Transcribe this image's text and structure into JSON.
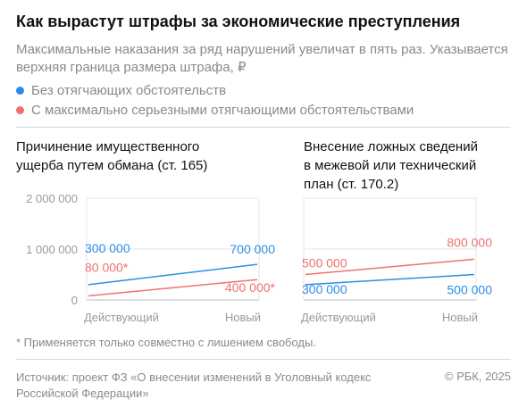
{
  "header": {
    "title": "Как вырастут штрафы за экономические преступления",
    "subtitle": "Максимальные наказания за ряд нарушений увеличат в пять раз. Указывается верхняя граница размера штрафа, ₽"
  },
  "legend": [
    {
      "label": "Без отягчающих обстоятельств",
      "color": "#2a8ee8"
    },
    {
      "label": "С максимально серьезными отягчающими обстоятельствами",
      "color": "#f07070"
    }
  ],
  "colors": {
    "blue": "#2a8ee8",
    "red": "#f07070",
    "grid": "#e6e6e6",
    "axis": "#bdbdbd"
  },
  "chart_data": [
    {
      "type": "line",
      "title": "Причинение имущественного ущерба путем обмана (ст. 165)",
      "categories": [
        "Действующий",
        "Новый"
      ],
      "ylim": [
        0,
        2000000
      ],
      "yticks": [
        0,
        1000000,
        2000000
      ],
      "ytick_labels": [
        "0",
        "1 000 000",
        "2 000 000"
      ],
      "grid": true,
      "series": [
        {
          "name": "Без отягчающих обстоятельств",
          "values": [
            300000,
            700000
          ],
          "labels": [
            "300 000",
            "700 000"
          ],
          "color": "#2a8ee8"
        },
        {
          "name": "С максимально серьезными отягчающими обстоятельствами",
          "values": [
            80000,
            400000
          ],
          "labels": [
            "80 000*",
            "400 000*"
          ],
          "color": "#f07070"
        }
      ]
    },
    {
      "type": "line",
      "title": "Внесение ложных сведений в межевой или технический план (ст. 170.2)",
      "categories": [
        "Действующий",
        "Новый"
      ],
      "ylim": [
        0,
        2000000
      ],
      "grid": true,
      "series": [
        {
          "name": "Без отягчающих обстоятельств",
          "values": [
            300000,
            500000
          ],
          "labels": [
            "300 000",
            "500 000"
          ],
          "color": "#2a8ee8"
        },
        {
          "name": "С максимально серьезными отягчающими обстоятельствами",
          "values": [
            500000,
            800000
          ],
          "labels": [
            "500 000",
            "800 000"
          ],
          "color": "#f07070"
        }
      ]
    }
  ],
  "panels": {
    "left_title_lines": [
      "Причинение имущественного",
      "ущерба путем обмана (ст. 165)"
    ],
    "right_title_lines": [
      "Внесение ложных сведений",
      "в межевой или технический",
      "план (ст. 170.2)"
    ]
  },
  "footnote": "* Применяется только совместно с лишением свободы.",
  "source": "Источник: проект ФЗ «О внесении изменений в Уголовный кодекс Российской Федерации»",
  "copyright": "© РБК, 2025"
}
